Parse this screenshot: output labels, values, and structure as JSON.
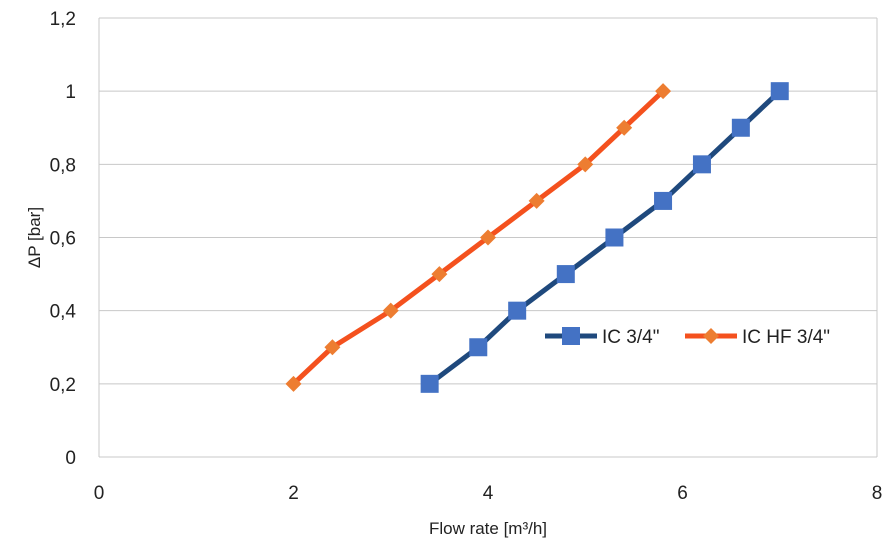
{
  "chart_data": {
    "type": "line",
    "title": "",
    "xlabel": "Flow rate [m³/h]",
    "ylabel": "ΔP [bar]",
    "xlim": [
      0,
      8
    ],
    "ylim": [
      0,
      1.2
    ],
    "x_ticks": [
      "0",
      "2",
      "4",
      "6",
      "8"
    ],
    "x_tick_values": [
      0,
      2,
      4,
      6,
      8
    ],
    "y_ticks": [
      "0",
      "0,2",
      "0,4",
      "0,6",
      "0,8",
      "1",
      "1,2"
    ],
    "y_tick_values": [
      0,
      0.2,
      0.4,
      0.6,
      0.8,
      1.0,
      1.2
    ],
    "grid": "horizontal",
    "legend_position": "right",
    "series": [
      {
        "name": "IC 3/4\"",
        "color": "#1F497D",
        "marker_color": "#4472C4",
        "marker": "square",
        "x": [
          3.4,
          3.9,
          4.3,
          4.8,
          5.3,
          5.8,
          6.2,
          6.6,
          7.0
        ],
        "y": [
          0.2,
          0.3,
          0.4,
          0.5,
          0.6,
          0.7,
          0.8,
          0.9,
          1.0
        ]
      },
      {
        "name": "IC HF 3/4\"",
        "color": "#F4511E",
        "marker_color": "#ED7D31",
        "marker": "diamond",
        "x": [
          2.0,
          2.4,
          3.0,
          3.5,
          4.0,
          4.5,
          5.0,
          5.4,
          5.8
        ],
        "y": [
          0.2,
          0.3,
          0.4,
          0.5,
          0.6,
          0.7,
          0.8,
          0.9,
          1.0
        ]
      }
    ]
  }
}
